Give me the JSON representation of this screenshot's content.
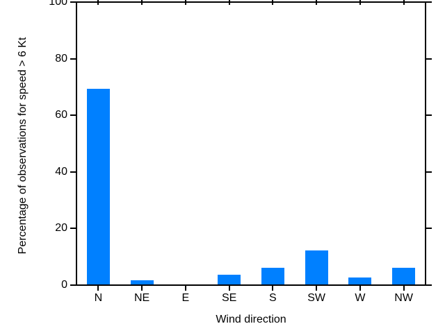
{
  "chart_data": {
    "type": "bar",
    "categories": [
      "N",
      "NE",
      "E",
      "SE",
      "S",
      "SW",
      "W",
      "NW"
    ],
    "values": [
      69,
      1.5,
      0,
      3.4,
      5.9,
      12.1,
      2.5,
      5.9
    ],
    "title": "",
    "xlabel": "Wind direction",
    "ylabel": "Percentage of observations for speed > 6 Kt",
    "ylim": [
      0,
      100
    ],
    "yticks": [
      0,
      20,
      40,
      60,
      80,
      100
    ],
    "bar_color": "#0080ff",
    "axis_color": "#000000",
    "background_color": "#ffffff",
    "grid": false,
    "legend_position": "none"
  }
}
